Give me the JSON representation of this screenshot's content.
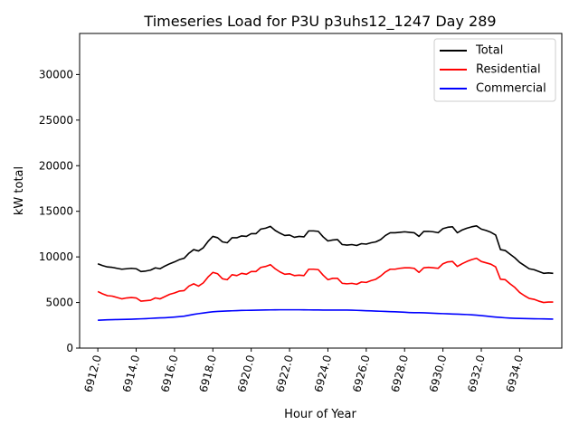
{
  "chart_data": {
    "type": "line",
    "title": "Timeseries Load for P3U p3uhs12_1247  Day 289",
    "xlabel": "Hour of Year",
    "ylabel": "kW total",
    "xlim": [
      6911.05,
      6936.2
    ],
    "ylim": [
      0,
      34500
    ],
    "xticks": [
      6912,
      6914,
      6916,
      6918,
      6920,
      6922,
      6924,
      6926,
      6928,
      6930,
      6932,
      6934
    ],
    "xtick_labels": [
      "6912.0",
      "6914.0",
      "6916.0",
      "6918.0",
      "6920.0",
      "6922.0",
      "6924.0",
      "6926.0",
      "6928.0",
      "6930.0",
      "6932.0",
      "6934.0"
    ],
    "yticks": [
      0,
      5000,
      10000,
      15000,
      20000,
      25000,
      30000
    ],
    "ytick_labels": [
      "0",
      "5000",
      "10000",
      "15000",
      "20000",
      "25000",
      "30000"
    ],
    "legend_position": "top-right",
    "x_start": 6912,
    "x_step": 0.25,
    "series": [
      {
        "name": "Total",
        "color": "#000000",
        "values": [
          9250,
          9050,
          8900,
          8850,
          8750,
          8650,
          8700,
          8750,
          8700,
          8400,
          8450,
          8550,
          8800,
          8700,
          9000,
          9250,
          9450,
          9700,
          9850,
          10400,
          10800,
          10650,
          11000,
          11700,
          12250,
          12100,
          11650,
          11550,
          12100,
          12100,
          12300,
          12250,
          12550,
          12550,
          13050,
          13150,
          13350,
          12900,
          12600,
          12350,
          12400,
          12150,
          12250,
          12200,
          12850,
          12850,
          12800,
          12200,
          11750,
          11850,
          11900,
          11350,
          11300,
          11350,
          11250,
          11450,
          11400,
          11550,
          11650,
          11900,
          12350,
          12650,
          12650,
          12700,
          12750,
          12700,
          12650,
          12250,
          12800,
          12800,
          12750,
          12650,
          13100,
          13250,
          13300,
          12650,
          12950,
          13150,
          13300,
          13400,
          13050,
          12900,
          12700,
          12400,
          10800,
          10700,
          10300,
          9900,
          9400,
          9050,
          8700,
          8600,
          8400,
          8200,
          8250,
          8200
        ]
      },
      {
        "name": "Residential",
        "color": "#ff0000",
        "values": [
          6200,
          5950,
          5750,
          5700,
          5550,
          5400,
          5500,
          5550,
          5500,
          5150,
          5200,
          5250,
          5500,
          5400,
          5650,
          5900,
          6050,
          6250,
          6300,
          6800,
          7050,
          6800,
          7150,
          7800,
          8300,
          8150,
          7600,
          7500,
          8050,
          7950,
          8200,
          8100,
          8400,
          8400,
          8850,
          8950,
          9150,
          8700,
          8350,
          8100,
          8150,
          7950,
          8000,
          7950,
          8650,
          8650,
          8600,
          8000,
          7500,
          7650,
          7650,
          7100,
          7050,
          7100,
          7000,
          7250,
          7200,
          7400,
          7550,
          7900,
          8350,
          8650,
          8650,
          8750,
          8800,
          8800,
          8750,
          8300,
          8800,
          8850,
          8800,
          8750,
          9250,
          9450,
          9500,
          8950,
          9250,
          9500,
          9700,
          9850,
          9500,
          9350,
          9200,
          8900,
          7550,
          7500,
          7050,
          6650,
          6100,
          5750,
          5450,
          5350,
          5150,
          5000,
          5050,
          5050
        ]
      },
      {
        "name": "Commercial",
        "color": "#0000ff",
        "values": [
          3050,
          3080,
          3100,
          3120,
          3130,
          3140,
          3150,
          3170,
          3190,
          3210,
          3230,
          3260,
          3290,
          3310,
          3330,
          3360,
          3400,
          3450,
          3500,
          3600,
          3700,
          3780,
          3850,
          3920,
          3980,
          4020,
          4050,
          4070,
          4090,
          4110,
          4130,
          4140,
          4150,
          4160,
          4170,
          4180,
          4190,
          4195,
          4200,
          4200,
          4200,
          4200,
          4200,
          4195,
          4190,
          4185,
          4180,
          4175,
          4170,
          4170,
          4170,
          4170,
          4170,
          4160,
          4140,
          4120,
          4100,
          4080,
          4060,
          4040,
          4020,
          4000,
          3980,
          3960,
          3930,
          3900,
          3880,
          3880,
          3870,
          3850,
          3820,
          3800,
          3780,
          3760,
          3740,
          3720,
          3700,
          3680,
          3650,
          3610,
          3560,
          3510,
          3450,
          3400,
          3360,
          3320,
          3290,
          3270,
          3250,
          3240,
          3230,
          3220,
          3210,
          3200,
          3190,
          3180
        ]
      }
    ]
  }
}
